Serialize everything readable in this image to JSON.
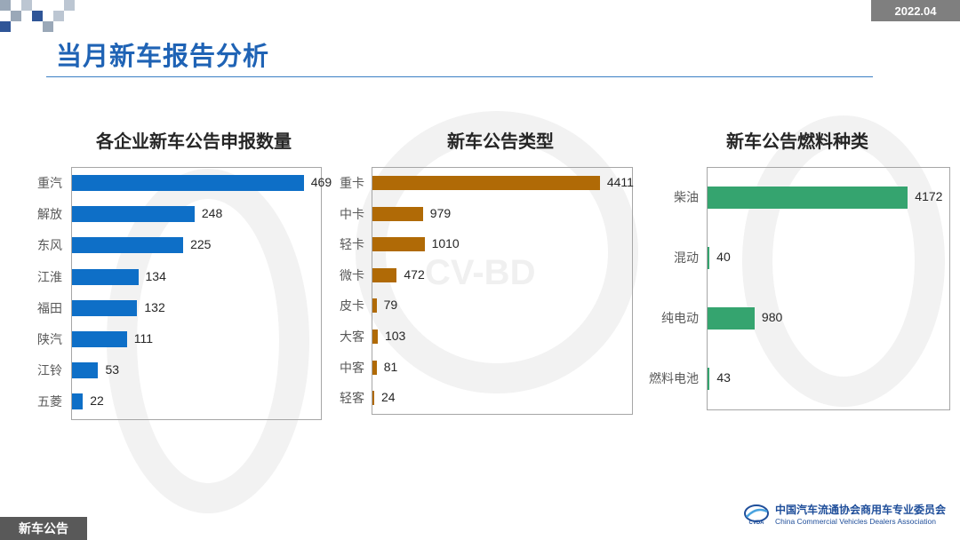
{
  "header": {
    "date": "2022.04",
    "title": "当月新车报告分析"
  },
  "footer": {
    "tab_label": "新车公告",
    "logo_cn": "中国汽车流通协会商用车专业委员会",
    "logo_en": "China Commercial Vehicles Dealers Association",
    "logo_mark": "CVDA"
  },
  "watermark": {
    "text": "CV-BD"
  },
  "colors": {
    "title": "#1f63b5",
    "chart1": "#0e6fc7",
    "chart2": "#b06a06",
    "chart3": "#35a46f"
  },
  "chart_data": [
    {
      "type": "bar",
      "orientation": "horizontal",
      "title": "各企业新车公告申报数量",
      "categories": [
        "重汽",
        "解放",
        "东风",
        "江淮",
        "福田",
        "陕汽",
        "江铃",
        "五菱"
      ],
      "values": [
        469,
        248,
        225,
        134,
        132,
        111,
        53,
        22
      ],
      "xlim": [
        0,
        500
      ],
      "grid": false,
      "legend": false
    },
    {
      "type": "bar",
      "orientation": "horizontal",
      "title": "新车公告类型",
      "categories": [
        "重卡",
        "中卡",
        "轻卡",
        "微卡",
        "皮卡",
        "大客",
        "中客",
        "轻客"
      ],
      "values": [
        4411,
        979,
        1010,
        472,
        79,
        103,
        81,
        24
      ],
      "xlim": [
        0,
        5000
      ],
      "grid": false,
      "legend": false
    },
    {
      "type": "bar",
      "orientation": "horizontal",
      "title": "新车公告燃料种类",
      "categories": [
        "柴油",
        "混动",
        "纯电动",
        "燃料电池"
      ],
      "values": [
        4172,
        40,
        980,
        43
      ],
      "xlim": [
        0,
        5000
      ],
      "grid": false,
      "legend": false
    }
  ]
}
